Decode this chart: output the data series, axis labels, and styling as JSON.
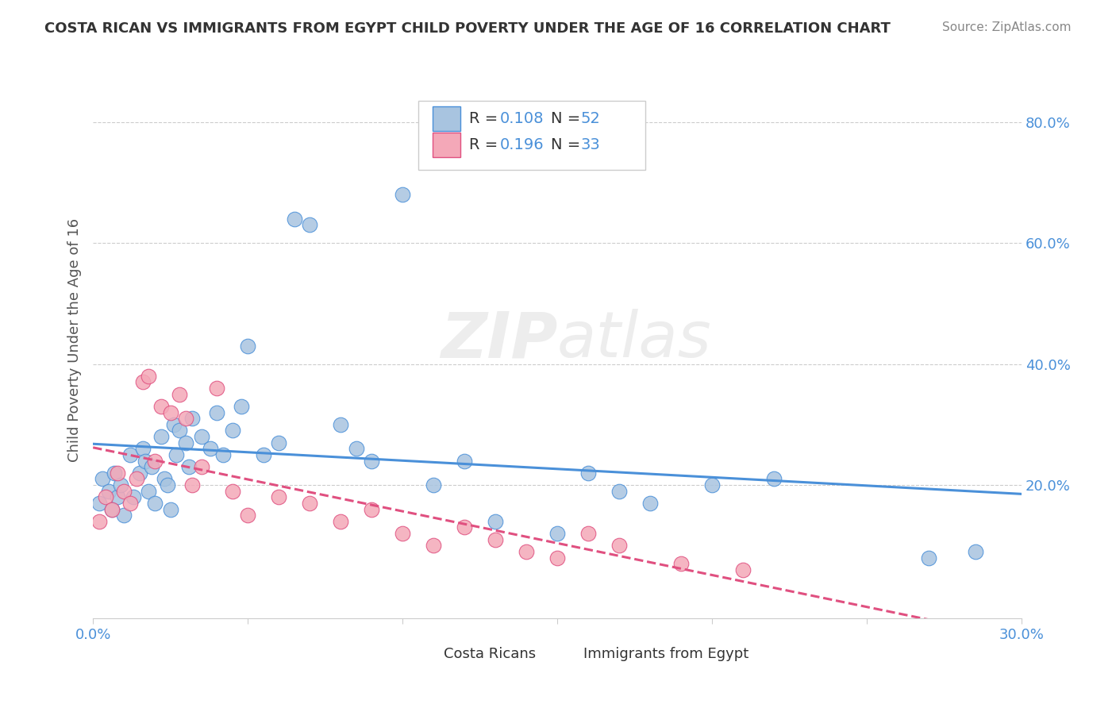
{
  "title": "COSTA RICAN VS IMMIGRANTS FROM EGYPT CHILD POVERTY UNDER THE AGE OF 16 CORRELATION CHART",
  "source": "Source: ZipAtlas.com",
  "ylabel": "Child Poverty Under the Age of 16",
  "right_yticks": [
    "80.0%",
    "60.0%",
    "40.0%",
    "20.0%"
  ],
  "right_ytick_vals": [
    0.8,
    0.6,
    0.4,
    0.2
  ],
  "xlim": [
    0.0,
    0.3
  ],
  "ylim": [
    -0.02,
    0.9
  ],
  "legend_r1": "0.108",
  "legend_n1": "52",
  "legend_r2": "0.196",
  "legend_n2": "33",
  "color_blue": "#a8c4e0",
  "color_pink": "#f4a8b8",
  "trendline_blue": "#4a90d9",
  "trendline_pink": "#e05080",
  "label1": "Costa Ricans",
  "label2": "Immigrants from Egypt",
  "watermark_zip": "ZIP",
  "watermark_atlas": "atlas",
  "blue_scatter_x": [
    0.002,
    0.003,
    0.005,
    0.006,
    0.007,
    0.008,
    0.009,
    0.01,
    0.012,
    0.013,
    0.015,
    0.016,
    0.017,
    0.018,
    0.019,
    0.02,
    0.022,
    0.023,
    0.024,
    0.025,
    0.026,
    0.027,
    0.028,
    0.03,
    0.031,
    0.032,
    0.035,
    0.038,
    0.04,
    0.042,
    0.045,
    0.048,
    0.05,
    0.055,
    0.06,
    0.065,
    0.07,
    0.08,
    0.085,
    0.09,
    0.1,
    0.11,
    0.12,
    0.13,
    0.15,
    0.16,
    0.17,
    0.18,
    0.2,
    0.22,
    0.27,
    0.285
  ],
  "blue_scatter_y": [
    0.17,
    0.21,
    0.19,
    0.16,
    0.22,
    0.18,
    0.2,
    0.15,
    0.25,
    0.18,
    0.22,
    0.26,
    0.24,
    0.19,
    0.23,
    0.17,
    0.28,
    0.21,
    0.2,
    0.16,
    0.3,
    0.25,
    0.29,
    0.27,
    0.23,
    0.31,
    0.28,
    0.26,
    0.32,
    0.25,
    0.29,
    0.33,
    0.43,
    0.25,
    0.27,
    0.64,
    0.63,
    0.3,
    0.26,
    0.24,
    0.68,
    0.2,
    0.24,
    0.14,
    0.12,
    0.22,
    0.19,
    0.17,
    0.2,
    0.21,
    0.08,
    0.09
  ],
  "pink_scatter_x": [
    0.002,
    0.004,
    0.006,
    0.008,
    0.01,
    0.012,
    0.014,
    0.016,
    0.018,
    0.02,
    0.022,
    0.025,
    0.028,
    0.03,
    0.032,
    0.035,
    0.04,
    0.045,
    0.05,
    0.06,
    0.07,
    0.08,
    0.09,
    0.1,
    0.11,
    0.12,
    0.13,
    0.14,
    0.15,
    0.16,
    0.17,
    0.19,
    0.21
  ],
  "pink_scatter_y": [
    0.14,
    0.18,
    0.16,
    0.22,
    0.19,
    0.17,
    0.21,
    0.37,
    0.38,
    0.24,
    0.33,
    0.32,
    0.35,
    0.31,
    0.2,
    0.23,
    0.36,
    0.19,
    0.15,
    0.18,
    0.17,
    0.14,
    0.16,
    0.12,
    0.1,
    0.13,
    0.11,
    0.09,
    0.08,
    0.12,
    0.1,
    0.07,
    0.06
  ]
}
